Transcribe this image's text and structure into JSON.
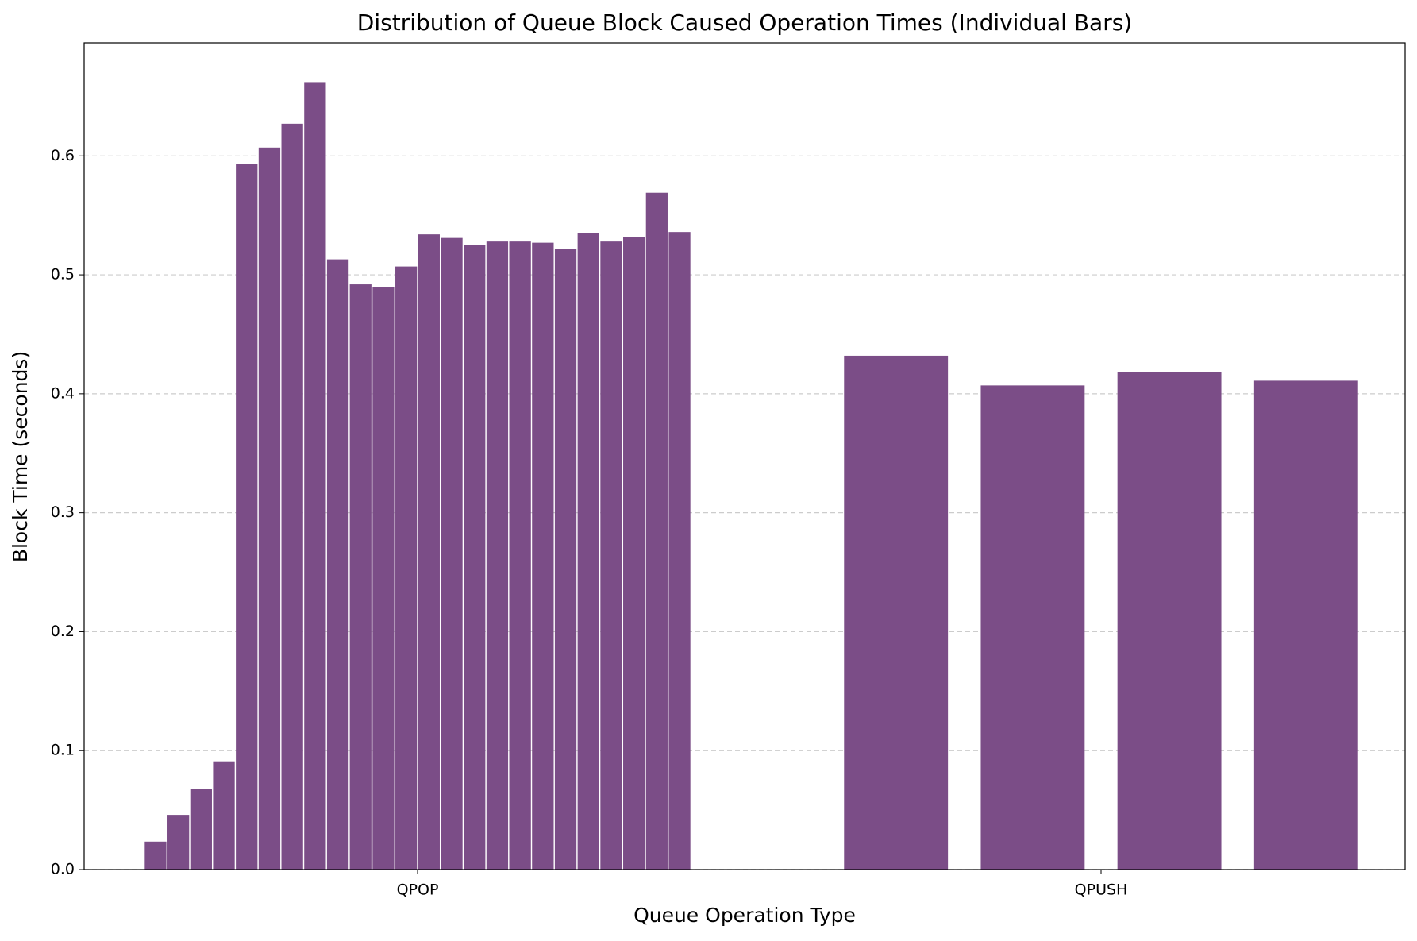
{
  "chart_data": {
    "type": "bar",
    "title": "Distribution of Queue Block Caused Operation Times (Individual Bars)",
    "x_label": "Queue Operation Type",
    "y_label": "Block Time (seconds)",
    "categories": [
      "QPOP",
      "QPUSH"
    ],
    "values": [
      [
        0.0235,
        0.046,
        0.068,
        0.091,
        0.593,
        0.607,
        0.627,
        0.662,
        0.513,
        0.492,
        0.49,
        0.507,
        0.534,
        0.531,
        0.525,
        0.528,
        0.528,
        0.527,
        0.522,
        0.535,
        0.528,
        0.532,
        0.569,
        0.536
      ],
      [
        0.432,
        0.407,
        0.418,
        0.411
      ]
    ],
    "color": "#7b4d87",
    "ylim": [
      0,
      0.695
    ],
    "yticks": [
      {
        "value": 0,
        "label": "0.0"
      },
      0.1,
      0.2,
      0.3,
      0.4,
      0.5,
      0.6
    ],
    "grid": true
  }
}
